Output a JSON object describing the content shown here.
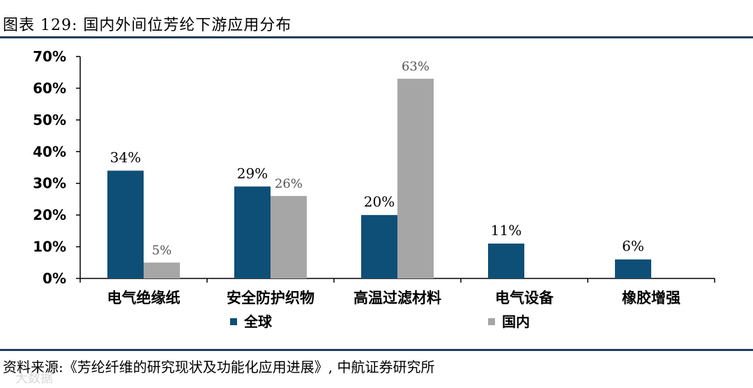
{
  "header": {
    "title": "图表 129: 国内外间位芳纶下游应用分布"
  },
  "footer": {
    "source": "资料来源:《芳纶纤维的研究现状及功能化应用进展》, 中航证券研究所",
    "watermark": "大数据"
  },
  "chart_data": {
    "type": "bar",
    "title": "",
    "xlabel": "",
    "ylabel": "",
    "categories": [
      "电气绝缘纸",
      "安全防护织物",
      "高温过滤材料",
      "电气设备",
      "橡胶增强"
    ],
    "ylim": [
      0,
      70
    ],
    "yticks": [
      0,
      10,
      20,
      30,
      40,
      50,
      60,
      70
    ],
    "y_tick_format": "percent",
    "legend_position": "bottom",
    "grid": false,
    "series": [
      {
        "name": "全球",
        "color": "#0e4f77",
        "values": [
          34,
          29,
          20,
          11,
          6
        ],
        "labels": [
          "34%",
          "29%",
          "20%",
          "11%",
          "6%"
        ]
      },
      {
        "name": "国内",
        "color": "#a6a6a6",
        "values": [
          5,
          26,
          63,
          null,
          null
        ],
        "labels": [
          "5%",
          "26%",
          "63%",
          "",
          ""
        ]
      }
    ]
  }
}
